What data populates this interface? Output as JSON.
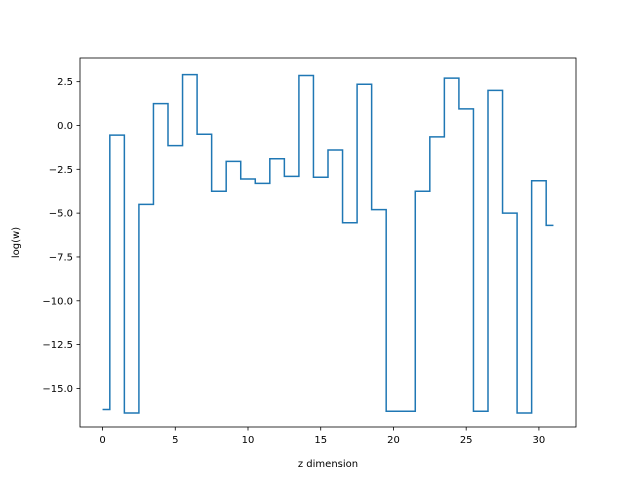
{
  "chart_data": {
    "type": "line",
    "drawstyle": "steps-mid",
    "xlabel": "z dimension",
    "ylabel": "log(w)",
    "xlim": [
      -1.55,
      32.55
    ],
    "ylim": [
      -17.2,
      3.85
    ],
    "x_ticks": [
      0,
      5,
      10,
      15,
      20,
      25,
      30
    ],
    "x_tick_labels": [
      "0",
      "5",
      "10",
      "15",
      "20",
      "25",
      "30"
    ],
    "y_ticks": [
      -15.0,
      -12.5,
      -10.0,
      -7.5,
      -5.0,
      -2.5,
      0.0,
      2.5
    ],
    "y_tick_labels": [
      "−15.0",
      "−12.5",
      "−10.0",
      "−7.5",
      "−5.0",
      "−2.5",
      "0.0",
      "2.5"
    ],
    "grid": false,
    "series": [
      {
        "color": "#1f77b4",
        "x": [
          0,
          1,
          2,
          3,
          4,
          5,
          6,
          7,
          8,
          9,
          10,
          11,
          12,
          13,
          14,
          15,
          16,
          17,
          18,
          19,
          20,
          21,
          22,
          23,
          24,
          25,
          26,
          27,
          28,
          29,
          30,
          31
        ],
        "values": [
          -16.2,
          -0.55,
          -16.4,
          -4.5,
          1.25,
          -1.15,
          2.9,
          -0.5,
          -3.75,
          -2.05,
          -3.05,
          -3.3,
          -1.9,
          -2.9,
          2.85,
          -2.95,
          -1.4,
          -5.55,
          2.35,
          -4.8,
          -16.3,
          -16.3,
          -3.75,
          -0.65,
          2.7,
          0.95,
          -16.3,
          2.0,
          -5.0,
          -16.4,
          -3.15,
          -5.7
        ]
      }
    ]
  }
}
